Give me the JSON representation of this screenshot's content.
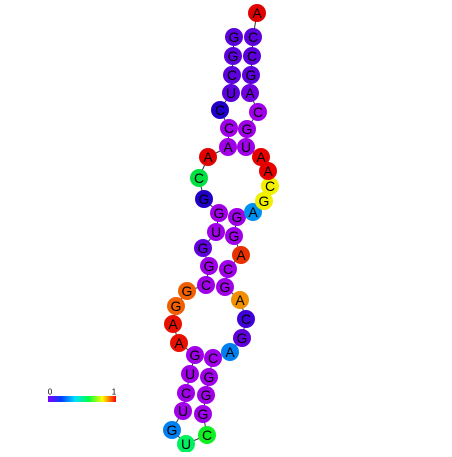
{
  "nodes": [
    {
      "label": "G",
      "color": "#5c00dc"
    },
    {
      "label": "G",
      "color": "#5c00dc"
    },
    {
      "label": "C",
      "color": "#5c00dc"
    },
    {
      "label": "U",
      "color": "#5c00dc"
    },
    {
      "label": "C",
      "color": "#2000c8"
    },
    {
      "label": "C",
      "color": "#a000e8"
    },
    {
      "label": "A",
      "color": "#a000e8"
    },
    {
      "label": "A",
      "color": "#e00000"
    },
    {
      "label": "C",
      "color": "#00e040"
    },
    {
      "label": "G",
      "color": "#2000c8"
    },
    {
      "label": "G",
      "color": "#a000e8"
    },
    {
      "label": "U",
      "color": "#a000e8"
    },
    {
      "label": "G",
      "color": "#6000dc"
    },
    {
      "label": "G",
      "color": "#a000e8"
    },
    {
      "label": "C",
      "color": "#a000e8"
    },
    {
      "label": "G",
      "color": "#f06000"
    },
    {
      "label": "G",
      "color": "#f06000"
    },
    {
      "label": "A",
      "color": "#e81000"
    },
    {
      "label": "A",
      "color": "#e81000"
    },
    {
      "label": "G",
      "color": "#a000e8"
    },
    {
      "label": "U",
      "color": "#a000e8"
    },
    {
      "label": "C",
      "color": "#a000e8"
    },
    {
      "label": "U",
      "color": "#a000e8"
    },
    {
      "label": "G",
      "color": "#0080f0"
    },
    {
      "label": "U",
      "color": "#00f060"
    },
    {
      "label": "C",
      "color": "#10f020"
    },
    {
      "label": "G",
      "color": "#a000e8"
    },
    {
      "label": "G",
      "color": "#a000e8"
    },
    {
      "label": "G",
      "color": "#a000e8"
    },
    {
      "label": "C",
      "color": "#a000e8"
    },
    {
      "label": "A",
      "color": "#0080f0"
    },
    {
      "label": "G",
      "color": "#6000dc"
    },
    {
      "label": "C",
      "color": "#4000d8"
    },
    {
      "label": "A",
      "color": "#f09000"
    },
    {
      "label": "G",
      "color": "#a000e8"
    },
    {
      "label": "C",
      "color": "#a000e8"
    },
    {
      "label": "A",
      "color": "#e83000"
    },
    {
      "label": "G",
      "color": "#a000e8"
    },
    {
      "label": "G",
      "color": "#a000e8"
    },
    {
      "label": "A",
      "color": "#0090f0"
    },
    {
      "label": "G",
      "color": "#f0f000"
    },
    {
      "label": "C",
      "color": "#f0f000"
    },
    {
      "label": "A",
      "color": "#e80000"
    },
    {
      "label": "A",
      "color": "#e80000"
    },
    {
      "label": "U",
      "color": "#a000e8"
    },
    {
      "label": "G",
      "color": "#a000e8"
    },
    {
      "label": "C",
      "color": "#a000e8"
    },
    {
      "label": "A",
      "color": "#7000e0"
    },
    {
      "label": "G",
      "color": "#5c00dc"
    },
    {
      "label": "C",
      "color": "#5c00dc"
    },
    {
      "label": "C",
      "color": "#5c00dc"
    },
    {
      "label": "A",
      "color": "#e00000"
    }
  ],
  "colorbar": {
    "min": "0",
    "max": "1"
  }
}
